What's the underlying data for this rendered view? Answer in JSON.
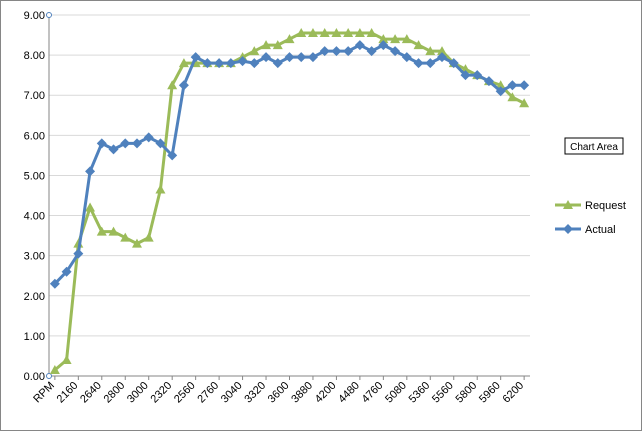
{
  "chart_data": {
    "type": "line",
    "categories": [
      "RPM",
      null,
      "2160",
      null,
      "2640",
      null,
      "2800",
      null,
      "3000",
      null,
      "2320",
      null,
      "2560",
      null,
      "2760",
      null,
      "3040",
      null,
      "3320",
      null,
      "3600",
      null,
      "3880",
      null,
      "4200",
      null,
      "4480",
      null,
      "4760",
      null,
      "5080",
      null,
      "5360",
      null,
      "5560",
      null,
      "5800",
      null,
      "5960",
      null,
      "6200"
    ],
    "series": [
      {
        "name": "Request",
        "color": "#9bbb59",
        "marker": "triangle",
        "values": [
          0.15,
          0.4,
          3.3,
          4.2,
          3.6,
          3.6,
          3.45,
          3.3,
          3.45,
          4.65,
          7.25,
          7.8,
          7.8,
          7.8,
          7.8,
          7.8,
          7.95,
          8.1,
          8.25,
          8.25,
          8.4,
          8.55,
          8.55,
          8.55,
          8.55,
          8.55,
          8.55,
          8.55,
          8.4,
          8.4,
          8.4,
          8.25,
          8.1,
          8.1,
          7.8,
          7.65,
          7.5,
          7.35,
          7.25,
          6.95,
          6.8
        ]
      },
      {
        "name": "Actual",
        "color": "#4f81bd",
        "marker": "diamond",
        "values": [
          2.3,
          2.6,
          3.05,
          5.1,
          5.8,
          5.65,
          5.8,
          5.8,
          5.95,
          5.8,
          5.5,
          7.25,
          7.95,
          7.8,
          7.8,
          7.8,
          7.85,
          7.8,
          7.95,
          7.8,
          7.95,
          7.95,
          7.95,
          8.1,
          8.1,
          8.1,
          8.25,
          8.1,
          8.25,
          8.1,
          7.95,
          7.8,
          7.8,
          7.95,
          7.8,
          7.5,
          7.5,
          7.35,
          7.1,
          7.25,
          7.25
        ]
      }
    ],
    "ylim": [
      0,
      9
    ],
    "yticks": [
      {
        "value": 0,
        "label": "0.00"
      },
      {
        "value": 1,
        "label": "1.00"
      },
      {
        "value": 2,
        "label": "2.00"
      },
      {
        "value": 3,
        "label": "3.00"
      },
      {
        "value": 4,
        "label": "4.00"
      },
      {
        "value": 5,
        "label": "5.00"
      },
      {
        "value": 6,
        "label": "6.00"
      },
      {
        "value": 7,
        "label": "7.00"
      },
      {
        "value": 8,
        "label": "8.00"
      },
      {
        "value": 9,
        "label": "9.00"
      }
    ],
    "grid": true,
    "legend": "right",
    "tooltip": "Chart Area"
  }
}
